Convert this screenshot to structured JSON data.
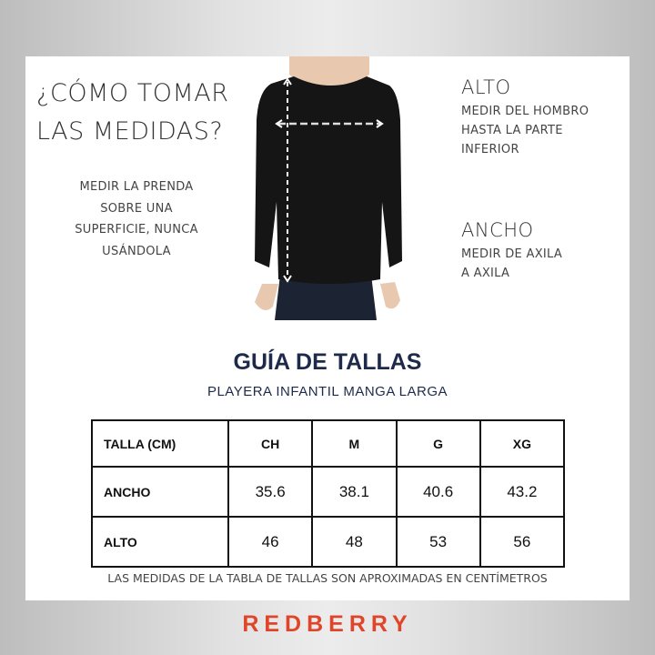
{
  "heading": "¿CÓMO TOMAR LAS MEDIDAS?",
  "instruction": "MEDIR LA PRENDA SOBRE UNA SUPERFICIE, NUNCA USÁNDOLA",
  "alto": {
    "title": "ALTO",
    "desc": "MEDIR DEL HOMBRO HASTA LA PARTE INFERIOR"
  },
  "ancho": {
    "title": "ANCHO",
    "desc": "MEDIR DE AXILA A AXILA"
  },
  "guide": {
    "title": "GUÍA DE TALLAS",
    "subtitle": "PLAYERA INFANTIL MANGA LARGA"
  },
  "table": {
    "header": [
      "TALLA (CM)",
      "CH",
      "M",
      "G",
      "XG"
    ],
    "rows": [
      [
        "ANCHO",
        "35.6",
        "38.1",
        "40.6",
        "43.2"
      ],
      [
        "ALTO",
        "46",
        "48",
        "53",
        "56"
      ]
    ]
  },
  "footnote": "LAS MEDIDAS DE LA TABLA DE TALLAS SON APROXIMADAS EN CENTÍMETROS",
  "brand": "REDBERRY",
  "colors": {
    "brand": "#e0452a",
    "title": "#1d2a4a"
  }
}
